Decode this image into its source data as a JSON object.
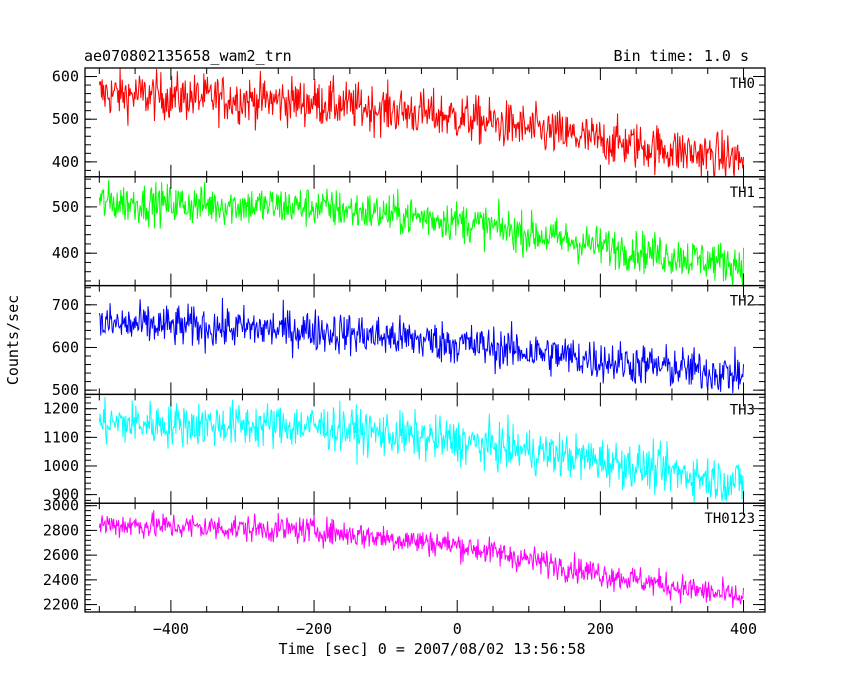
{
  "chart_data": {
    "type": "line",
    "title": "ae070802135658_wam2_trn",
    "subtitle": "Bin time: 1.0 s",
    "xlabel": "Time [sec] 0 = 2007/08/02 13:56:58",
    "ylabel": "Counts/sec",
    "xlim": [
      -520,
      430
    ],
    "x_ticks": [
      -400,
      -200,
      0,
      200,
      400
    ],
    "x_range": [
      -500,
      400
    ],
    "x_step": 1,
    "panels": [
      {
        "label": "TH0",
        "color": "#ff0000",
        "ylim": [
          365,
          620
        ],
        "y_ticks": [
          400,
          500,
          600
        ],
        "trend": [
          [
            -500,
            560
          ],
          [
            -200,
            540
          ],
          [
            0,
            505
          ],
          [
            200,
            450
          ],
          [
            400,
            405
          ]
        ],
        "noise": 28
      },
      {
        "label": "TH1",
        "color": "#00ff00",
        "ylim": [
          330,
          565
        ],
        "y_ticks": [
          400,
          500
        ],
        "trend": [
          [
            -500,
            510
          ],
          [
            -200,
            500
          ],
          [
            0,
            470
          ],
          [
            200,
            415
          ],
          [
            400,
            375
          ]
        ],
        "noise": 22
      },
      {
        "label": "TH2",
        "color": "#0000ff",
        "ylim": [
          490,
          745
        ],
        "y_ticks": [
          500,
          600,
          700
        ],
        "trend": [
          [
            -500,
            655
          ],
          [
            -200,
            640
          ],
          [
            0,
            610
          ],
          [
            200,
            570
          ],
          [
            400,
            535
          ]
        ],
        "noise": 25
      },
      {
        "label": "TH3",
        "color": "#00ffff",
        "ylim": [
          870,
          1250
        ],
        "y_ticks": [
          900,
          1000,
          1100,
          1200
        ],
        "trend": [
          [
            -500,
            1150
          ],
          [
            -200,
            1140
          ],
          [
            0,
            1085
          ],
          [
            200,
            1020
          ],
          [
            400,
            940
          ]
        ],
        "noise": 40
      },
      {
        "label": "TH0123",
        "color": "#ff00ff",
        "ylim": [
          2140,
          3020
        ],
        "y_ticks": [
          2200,
          2400,
          2600,
          2800,
          3000
        ],
        "trend": [
          [
            -500,
            2850
          ],
          [
            -200,
            2800
          ],
          [
            0,
            2680
          ],
          [
            200,
            2450
          ],
          [
            400,
            2250
          ]
        ],
        "noise": 55
      }
    ]
  }
}
